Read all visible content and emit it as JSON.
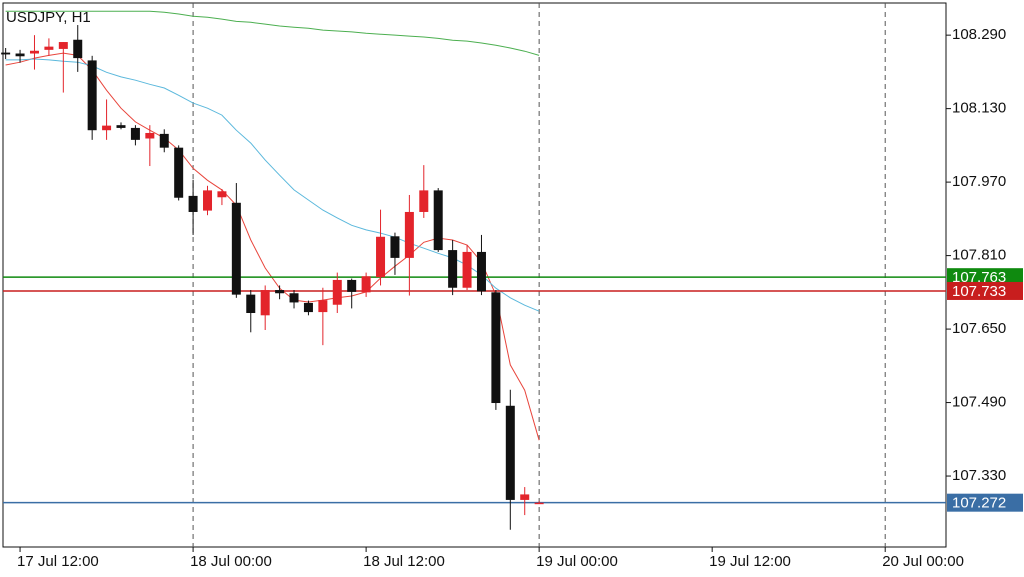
{
  "chart_data": {
    "type": "candlestick",
    "title": "USDJPY, H1",
    "x": [
      "17 Jul 11:00",
      "17 Jul 12:00",
      "17 Jul 13:00",
      "17 Jul 14:00",
      "17 Jul 15:00",
      "17 Jul 16:00",
      "17 Jul 17:00",
      "17 Jul 18:00",
      "17 Jul 19:00",
      "17 Jul 20:00",
      "17 Jul 21:00",
      "17 Jul 22:00",
      "17 Jul 23:00",
      "18 Jul 00:00",
      "18 Jul 01:00",
      "18 Jul 02:00",
      "18 Jul 03:00",
      "18 Jul 04:00",
      "18 Jul 05:00",
      "18 Jul 06:00",
      "18 Jul 07:00",
      "18 Jul 08:00",
      "18 Jul 09:00",
      "18 Jul 10:00",
      "18 Jul 11:00",
      "18 Jul 12:00",
      "18 Jul 13:00",
      "18 Jul 14:00",
      "18 Jul 15:00",
      "18 Jul 16:00",
      "18 Jul 17:00",
      "18 Jul 18:00",
      "18 Jul 19:00",
      "18 Jul 20:00",
      "18 Jul 21:00",
      "18 Jul 22:00",
      "18 Jul 23:00",
      "19 Jul 00:00"
    ],
    "open": [
      108.252,
      108.25,
      108.25,
      108.258,
      108.26,
      108.28,
      108.235,
      108.083,
      108.094,
      108.088,
      108.065,
      108.075,
      108.045,
      107.94,
      107.908,
      107.937,
      107.925,
      107.725,
      107.68,
      107.735,
      107.728,
      107.707,
      107.687,
      107.703,
      107.757,
      107.73,
      107.763,
      107.852,
      107.805,
      107.905,
      107.952,
      107.822,
      107.74,
      107.818,
      107.73,
      107.483,
      107.278,
      107.272
    ],
    "high": [
      108.262,
      108.258,
      108.29,
      108.283,
      108.275,
      108.312,
      108.245,
      108.15,
      108.1,
      108.094,
      108.094,
      108.085,
      108.05,
      107.975,
      107.962,
      107.955,
      107.968,
      107.735,
      107.745,
      107.745,
      107.735,
      107.712,
      107.74,
      107.773,
      107.76,
      107.773,
      107.91,
      107.86,
      107.942,
      108.007,
      107.957,
      107.844,
      107.833,
      107.855,
      107.735,
      107.518,
      107.306,
      107.275
    ],
    "low": [
      108.238,
      108.23,
      108.215,
      108.245,
      108.165,
      108.21,
      108.062,
      108.062,
      108.085,
      108.05,
      108.005,
      108.035,
      107.93,
      107.855,
      107.898,
      107.92,
      107.718,
      107.643,
      107.648,
      107.715,
      107.695,
      107.68,
      107.615,
      107.685,
      107.695,
      107.72,
      107.745,
      107.768,
      107.723,
      107.892,
      107.818,
      107.724,
      107.735,
      107.724,
      107.474,
      107.213,
      107.245,
      107.27
    ],
    "close": [
      108.248,
      108.244,
      108.256,
      108.265,
      108.275,
      108.24,
      108.083,
      108.093,
      108.088,
      108.062,
      108.077,
      108.045,
      107.936,
      107.905,
      107.952,
      107.95,
      107.725,
      107.685,
      107.735,
      107.728,
      107.708,
      107.687,
      107.713,
      107.757,
      107.731,
      107.765,
      107.851,
      107.805,
      107.905,
      107.952,
      107.822,
      107.74,
      107.818,
      107.732,
      107.489,
      107.278,
      107.29,
      107.272
    ],
    "up_color": "#e3242b",
    "down_color": "#111111",
    "indicators": [
      {
        "color": "#e8453c",
        "values": [
          108.225,
          108.231,
          108.24,
          108.246,
          108.251,
          108.246,
          108.214,
          108.17,
          108.131,
          108.101,
          108.083,
          108.066,
          108.04,
          108.0,
          107.974,
          107.953,
          107.92,
          107.844,
          107.783,
          107.739,
          107.713,
          107.709,
          107.713,
          107.718,
          107.722,
          107.731,
          107.761,
          107.787,
          107.811,
          107.839,
          107.848,
          107.844,
          107.833,
          107.796,
          107.724,
          107.572,
          107.517,
          107.408
        ]
      },
      {
        "color": "#5bb8dc",
        "values": [
          108.236,
          108.236,
          108.238,
          108.236,
          108.233,
          108.231,
          108.223,
          108.209,
          108.199,
          108.192,
          108.183,
          108.175,
          108.159,
          108.142,
          108.131,
          108.116,
          108.083,
          108.055,
          108.018,
          107.985,
          107.953,
          107.931,
          107.909,
          107.892,
          107.876,
          107.866,
          107.859,
          107.85,
          107.837,
          107.826,
          107.815,
          107.805,
          107.789,
          107.768,
          107.739,
          107.718,
          107.702,
          107.689
        ]
      },
      {
        "color": "#4caf50",
        "values": [
          108.342,
          108.342,
          108.342,
          108.342,
          108.342,
          108.342,
          108.342,
          108.342,
          108.342,
          108.342,
          108.342,
          108.34,
          108.336,
          108.331,
          108.329,
          108.325,
          108.32,
          108.318,
          108.314,
          108.31,
          108.307,
          108.305,
          108.301,
          108.299,
          108.297,
          108.294,
          108.292,
          108.29,
          108.288,
          108.286,
          108.283,
          108.279,
          108.277,
          108.273,
          108.268,
          108.262,
          108.255,
          108.246
        ]
      }
    ],
    "levels": [
      {
        "value": 107.763,
        "color": "#0f8a0f"
      },
      {
        "value": 107.733,
        "color": "#c81e1e"
      },
      {
        "value": 107.272,
        "color": "#3a6ea5"
      }
    ],
    "xlim": [
      "17 Jul 10:49",
      "20 Jul 04:13"
    ],
    "xticks": [
      "17 Jul 12:00",
      "18 Jul 00:00",
      "18 Jul 12:00",
      "19 Jul 00:00",
      "19 Jul 12:00",
      "20 Jul 00:00"
    ],
    "period_separators": true,
    "ylim": [
      107.1755,
      108.36
    ],
    "yticks": [
      {
        "value": 108.29,
        "label": "108.290"
      },
      {
        "value": 108.13,
        "label": "108.130"
      },
      {
        "value": 107.97,
        "label": "107.970"
      },
      {
        "value": 107.81,
        "label": "107.810"
      },
      {
        "value": 107.65,
        "label": "107.650"
      },
      {
        "value": 107.49,
        "label": "107.490"
      },
      {
        "value": 107.33,
        "label": "107.330"
      }
    ]
  }
}
